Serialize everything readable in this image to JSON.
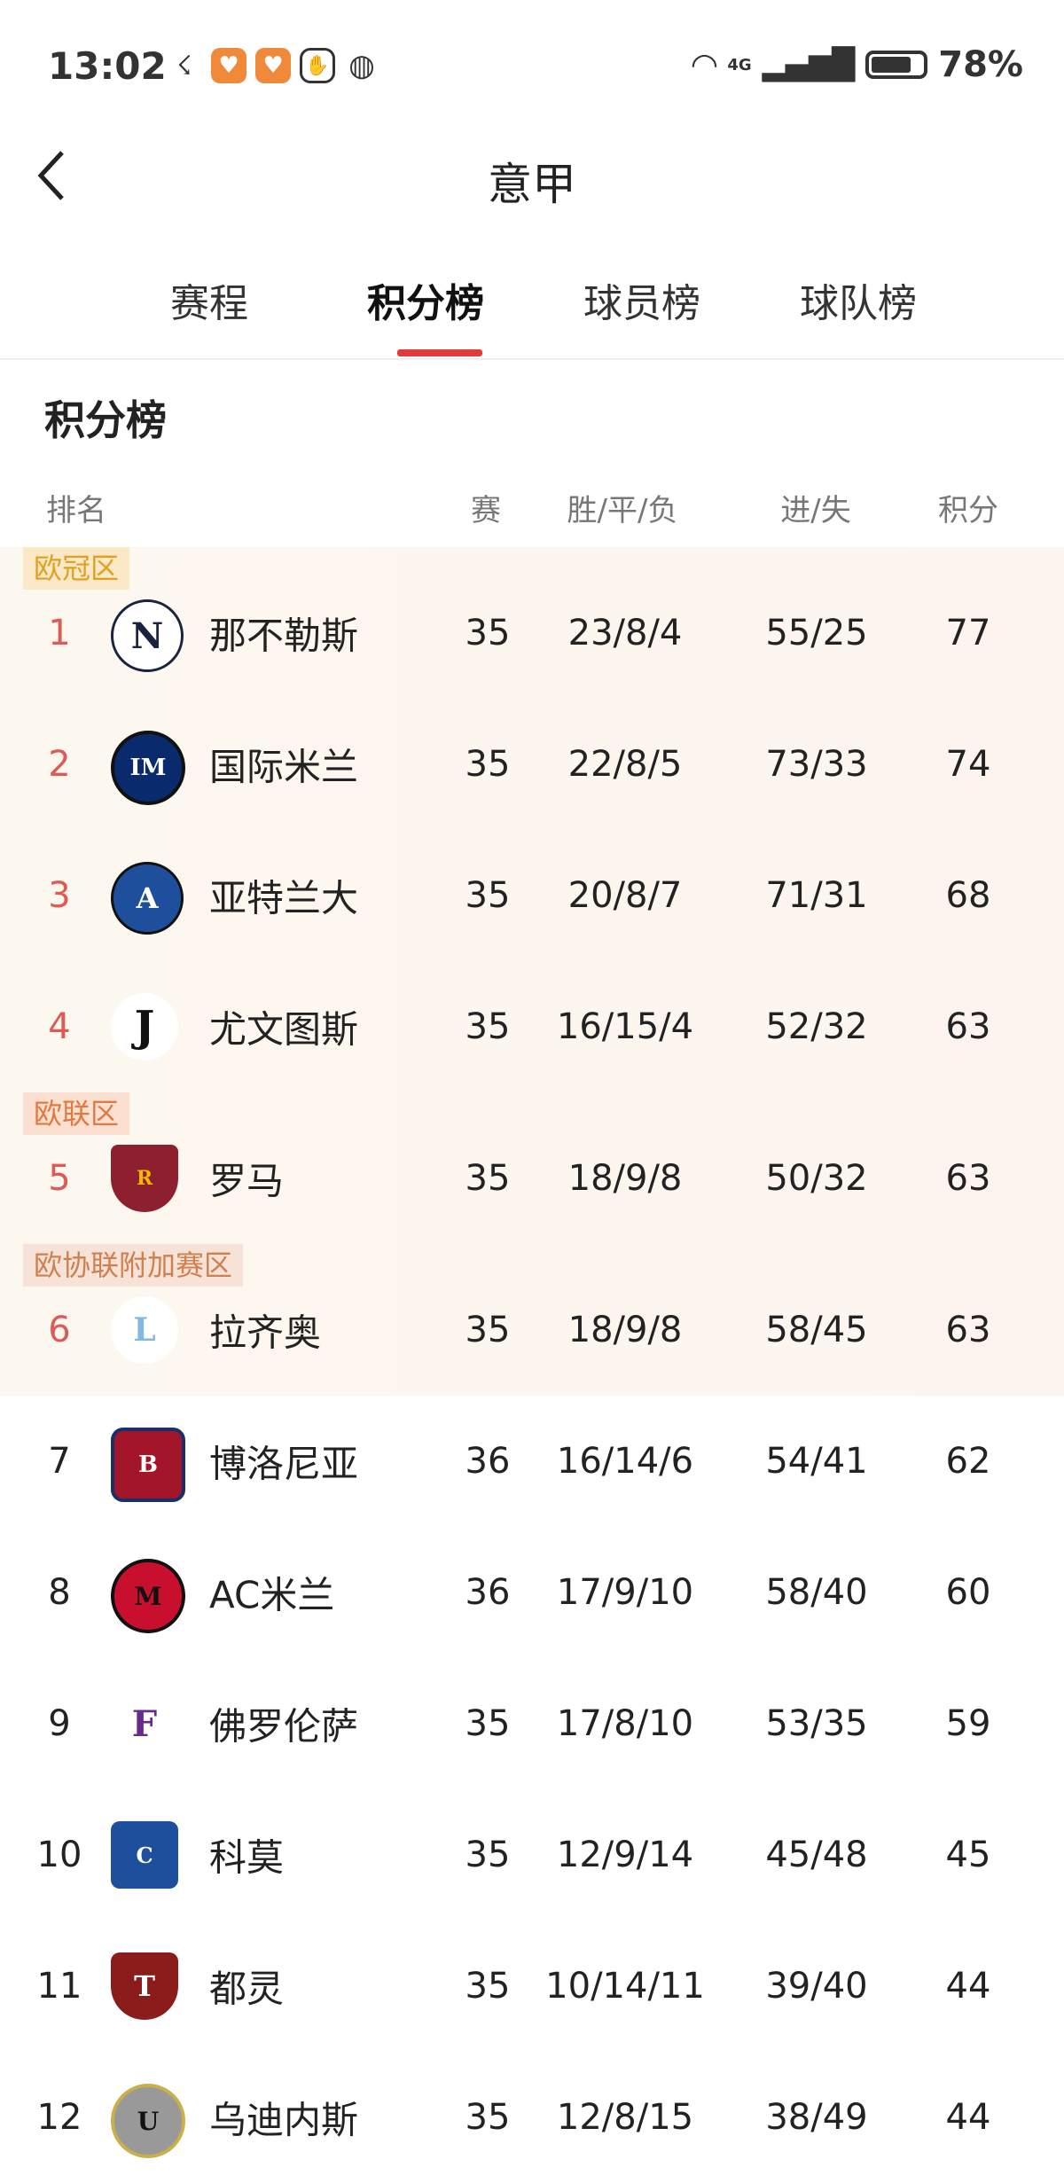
{
  "status_bar": {
    "time": "13:02",
    "battery": "78%",
    "battery_level": 78,
    "network": "4G",
    "icons": [
      "missed-call-icon",
      "app-icon",
      "app-icon",
      "hand-icon",
      "globe-icon",
      "wifi-icon",
      "signal-icon",
      "battery-icon"
    ]
  },
  "header": {
    "title": "意甲",
    "back_icon": "chevron-left-icon"
  },
  "tabs": [
    {
      "label": "赛程",
      "active": false
    },
    {
      "label": "积分榜",
      "active": true
    },
    {
      "label": "球员榜",
      "active": false
    },
    {
      "label": "球队榜",
      "active": false
    }
  ],
  "colors": {
    "accent": "#e33b3b",
    "rank_top": "#e05a55",
    "ucl_label_bg": "#fbe8c6",
    "ucl_label_text": "#e0a020",
    "uel_label_bg": "#fbe0d2",
    "uel_label_text": "#e07a40",
    "uecl_label_bg": "#f6e2d6",
    "uecl_label_text": "#d08050"
  },
  "section_title": "积分榜",
  "columns": {
    "rank": "排名",
    "played": "赛",
    "wdl": "胜/平/负",
    "goals": "进/失",
    "points": "积分"
  },
  "zones": {
    "ucl": "欧冠区",
    "uel": "欧联区",
    "uecl": "欧协联附加赛区"
  },
  "standings": [
    {
      "rank": "1",
      "team": "那不勒斯",
      "played": "35",
      "wdl": "23/8/4",
      "goals": "55/25",
      "points": "77",
      "zone": "ucl",
      "logo": "N"
    },
    {
      "rank": "2",
      "team": "国际米兰",
      "played": "35",
      "wdl": "22/8/5",
      "goals": "73/33",
      "points": "74",
      "logo": "IM"
    },
    {
      "rank": "3",
      "team": "亚特兰大",
      "played": "35",
      "wdl": "20/8/7",
      "goals": "71/31",
      "points": "68",
      "logo": "A"
    },
    {
      "rank": "4",
      "team": "尤文图斯",
      "played": "35",
      "wdl": "16/15/4",
      "goals": "52/32",
      "points": "63",
      "logo": "J"
    },
    {
      "rank": "5",
      "team": "罗马",
      "played": "35",
      "wdl": "18/9/8",
      "goals": "50/32",
      "points": "63",
      "zone": "uel",
      "logo": "R"
    },
    {
      "rank": "6",
      "team": "拉齐奥",
      "played": "35",
      "wdl": "18/9/8",
      "goals": "58/45",
      "points": "63",
      "zone": "uecl",
      "logo": "L"
    },
    {
      "rank": "7",
      "team": "博洛尼亚",
      "played": "36",
      "wdl": "16/14/6",
      "goals": "54/41",
      "points": "62",
      "logo": "B"
    },
    {
      "rank": "8",
      "team": "AC米兰",
      "played": "36",
      "wdl": "17/9/10",
      "goals": "58/40",
      "points": "60",
      "logo": "M"
    },
    {
      "rank": "9",
      "team": "佛罗伦萨",
      "played": "35",
      "wdl": "17/8/10",
      "goals": "53/35",
      "points": "59",
      "logo": "F"
    },
    {
      "rank": "10",
      "team": "科莫",
      "played": "35",
      "wdl": "12/9/14",
      "goals": "45/48",
      "points": "45",
      "logo": "C"
    },
    {
      "rank": "11",
      "team": "都灵",
      "played": "35",
      "wdl": "10/14/11",
      "goals": "39/40",
      "points": "44",
      "logo": "T"
    },
    {
      "rank": "12",
      "team": "乌迪内斯",
      "played": "35",
      "wdl": "12/8/15",
      "goals": "38/49",
      "points": "44",
      "logo": "U"
    }
  ]
}
